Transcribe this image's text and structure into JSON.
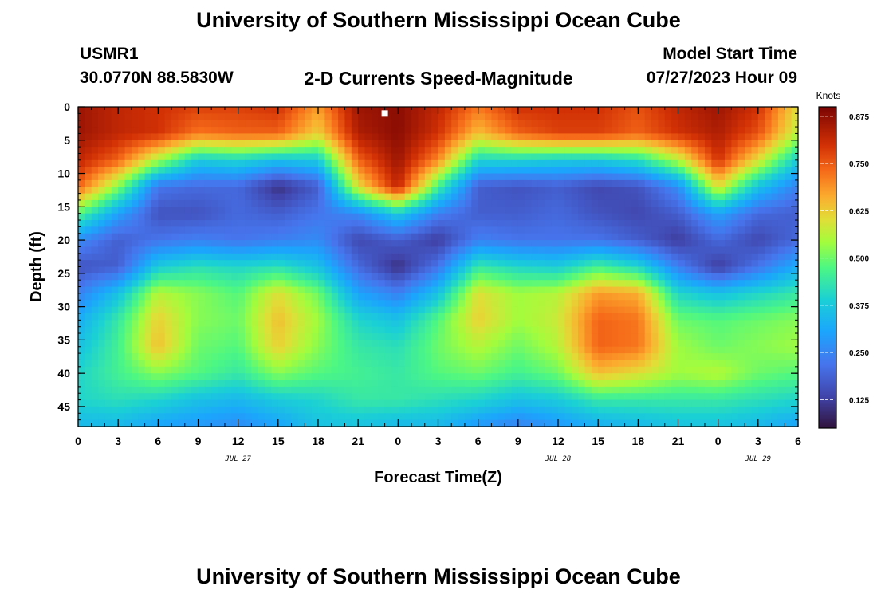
{
  "header": {
    "title": "University of Southern Mississippi Ocean Cube",
    "station_id": "USMR1",
    "coords": "30.0770N  88.5830W",
    "plot_title": "2-D Currents Speed-Magnitude",
    "model_label": "Model Start Time",
    "model_time": "07/27/2023 Hour 09"
  },
  "footer": {
    "title": "University of Southern Mississippi Ocean Cube"
  },
  "chart_data": {
    "type": "heatmap",
    "title": "2-D Currents Speed-Magnitude",
    "xlabel": "Forecast Time(Z)",
    "ylabel": "Depth (ft)",
    "x_tick_labels": [
      "0",
      "3",
      "6",
      "9",
      "12",
      "15",
      "18",
      "21",
      "0",
      "3",
      "6",
      "9",
      "12",
      "15",
      "18",
      "21",
      "0",
      "3",
      "6"
    ],
    "x_range_hours": [
      0,
      54
    ],
    "date_labels": [
      {
        "text": "JUL 27",
        "hour": 12
      },
      {
        "text": "JUL 28",
        "hour": 36
      },
      {
        "text": "JUL 29",
        "hour": 51
      }
    ],
    "y_tick_labels": [
      "0",
      "5",
      "10",
      "15",
      "20",
      "25",
      "30",
      "35",
      "40",
      "45"
    ],
    "y_range_ft": [
      0,
      48
    ],
    "colorbar": {
      "unit": "Knots",
      "range": [
        0.05,
        0.9
      ],
      "ticks": [
        "0.125",
        "0.250",
        "0.375",
        "0.500",
        "0.625",
        "0.750",
        "0.875"
      ],
      "tick_values": [
        0.125,
        0.25,
        0.375,
        0.5,
        0.625,
        0.75,
        0.875
      ]
    },
    "marker": {
      "hour": 23,
      "depth_ft": 1,
      "color": "#ffffff"
    },
    "grid_hours": [
      0,
      3,
      6,
      9,
      12,
      15,
      18,
      21,
      24,
      27,
      30,
      33,
      36,
      39,
      42,
      45,
      48,
      51,
      54
    ],
    "grid_depths_ft": [
      0,
      4,
      8,
      12,
      16,
      20,
      24,
      28,
      32,
      36,
      40,
      44,
      48
    ],
    "values_knots": [
      [
        0.86,
        0.82,
        0.8,
        0.78,
        0.78,
        0.8,
        0.68,
        0.86,
        0.88,
        0.82,
        0.72,
        0.8,
        0.8,
        0.8,
        0.76,
        0.82,
        0.86,
        0.8,
        0.6
      ],
      [
        0.86,
        0.82,
        0.8,
        0.72,
        0.74,
        0.74,
        0.62,
        0.84,
        0.88,
        0.8,
        0.64,
        0.74,
        0.78,
        0.78,
        0.74,
        0.8,
        0.84,
        0.76,
        0.56
      ],
      [
        0.82,
        0.74,
        0.55,
        0.38,
        0.4,
        0.36,
        0.38,
        0.74,
        0.86,
        0.7,
        0.4,
        0.4,
        0.38,
        0.38,
        0.42,
        0.56,
        0.8,
        0.6,
        0.38
      ],
      [
        0.74,
        0.52,
        0.22,
        0.2,
        0.2,
        0.1,
        0.18,
        0.6,
        0.82,
        0.46,
        0.18,
        0.16,
        0.18,
        0.14,
        0.16,
        0.26,
        0.6,
        0.36,
        0.24
      ],
      [
        0.48,
        0.3,
        0.16,
        0.16,
        0.2,
        0.18,
        0.22,
        0.26,
        0.38,
        0.24,
        0.18,
        0.18,
        0.2,
        0.16,
        0.14,
        0.18,
        0.3,
        0.2,
        0.18
      ],
      [
        0.26,
        0.18,
        0.22,
        0.24,
        0.22,
        0.24,
        0.26,
        0.14,
        0.18,
        0.12,
        0.24,
        0.22,
        0.22,
        0.22,
        0.18,
        0.12,
        0.2,
        0.14,
        0.2
      ],
      [
        0.16,
        0.18,
        0.38,
        0.42,
        0.4,
        0.42,
        0.36,
        0.2,
        0.1,
        0.22,
        0.44,
        0.4,
        0.38,
        0.46,
        0.4,
        0.24,
        0.12,
        0.22,
        0.32
      ],
      [
        0.24,
        0.36,
        0.56,
        0.52,
        0.48,
        0.6,
        0.5,
        0.3,
        0.24,
        0.36,
        0.6,
        0.54,
        0.56,
        0.68,
        0.66,
        0.4,
        0.36,
        0.4,
        0.44
      ],
      [
        0.32,
        0.44,
        0.62,
        0.52,
        0.5,
        0.64,
        0.54,
        0.4,
        0.36,
        0.48,
        0.62,
        0.54,
        0.58,
        0.74,
        0.72,
        0.5,
        0.48,
        0.5,
        0.52
      ],
      [
        0.36,
        0.46,
        0.64,
        0.5,
        0.48,
        0.62,
        0.52,
        0.44,
        0.42,
        0.5,
        0.56,
        0.5,
        0.56,
        0.74,
        0.72,
        0.54,
        0.5,
        0.52,
        0.54
      ],
      [
        0.4,
        0.46,
        0.52,
        0.48,
        0.44,
        0.52,
        0.48,
        0.46,
        0.44,
        0.48,
        0.5,
        0.46,
        0.5,
        0.64,
        0.6,
        0.54,
        0.56,
        0.5,
        0.48
      ],
      [
        0.4,
        0.42,
        0.4,
        0.36,
        0.34,
        0.38,
        0.4,
        0.44,
        0.44,
        0.42,
        0.4,
        0.36,
        0.38,
        0.44,
        0.44,
        0.44,
        0.44,
        0.42,
        0.4
      ],
      [
        0.34,
        0.34,
        0.3,
        0.28,
        0.26,
        0.3,
        0.36,
        0.36,
        0.34,
        0.34,
        0.28,
        0.24,
        0.28,
        0.32,
        0.34,
        0.36,
        0.36,
        0.34,
        0.3
      ]
    ]
  }
}
